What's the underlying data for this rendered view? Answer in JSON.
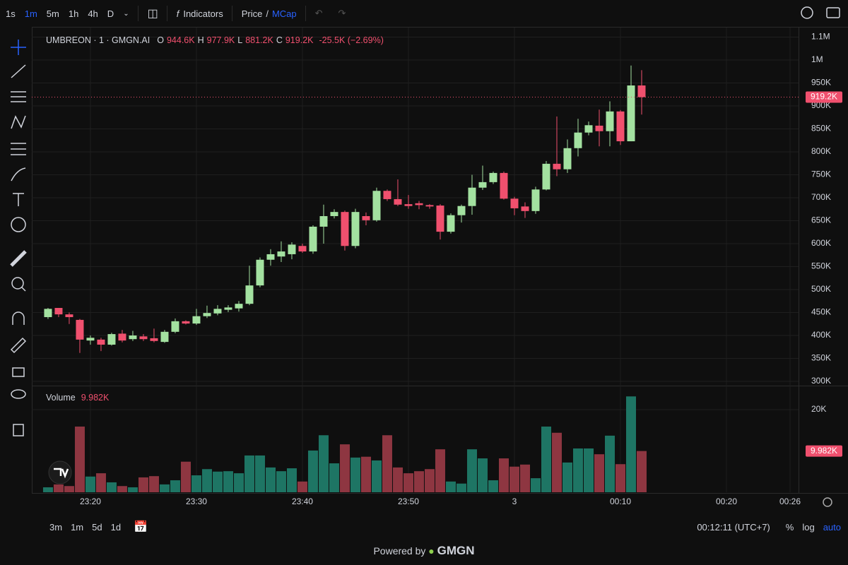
{
  "toolbar": {
    "intervals": [
      "1s",
      "1m",
      "5m",
      "1h",
      "4h",
      "D"
    ],
    "indicators": "Indicators",
    "price": "Price",
    "separator": "/",
    "mcap": "MCap"
  },
  "legend": {
    "symbol": "UMBREON · 1 · GMGN.AI",
    "o": "O",
    "open": "944.6K",
    "h": "H",
    "high": "977.9K",
    "l": "L",
    "low": "881.2K",
    "c": "C",
    "close": "919.2K",
    "change": "-25.5K (−2.69%)"
  },
  "volume_legend": {
    "title": "Volume",
    "value": "9.982K"
  },
  "chart_data": {
    "type": "candlestick",
    "xlim": [
      -1.53,
      70.8
    ],
    "xticks": [
      {
        "value": 4,
        "label": "23:20"
      },
      {
        "value": 14,
        "label": "23:30"
      },
      {
        "value": 24,
        "label": "23:40"
      },
      {
        "value": 34,
        "label": "23:50"
      },
      {
        "value": 44,
        "label": "3"
      },
      {
        "value": 54,
        "label": "00:10"
      },
      {
        "value": 64,
        "label": "00:20"
      },
      {
        "value": 70,
        "label": "00:26"
      }
    ],
    "open": [
      440000,
      460000,
      446000,
      434000,
      389000,
      391000,
      380000,
      404000,
      392000,
      398000,
      394000,
      386000,
      408000,
      431000,
      426000,
      442000,
      448000,
      456000,
      459000,
      469000,
      509000,
      565000,
      572000,
      577000,
      595000,
      583000,
      637000,
      660000,
      669000,
      595000,
      660000,
      651000,
      715000,
      697000,
      686000,
      688000,
      684000,
      683000,
      626000,
      662000,
      682000,
      722000,
      734000,
      754000,
      698000,
      681000,
      671000,
      718000,
      774000,
      762000,
      808000,
      842000,
      857000,
      845000,
      888000,
      823000,
      944600
    ],
    "high": [
      460000,
      460000,
      450000,
      436000,
      400000,
      395000,
      406000,
      412000,
      410000,
      403000,
      415000,
      412000,
      437000,
      433000,
      458000,
      465000,
      466000,
      466000,
      475000,
      552000,
      570000,
      588000,
      605000,
      603000,
      600000,
      640000,
      685000,
      675000,
      672000,
      676000,
      668000,
      722000,
      718000,
      740000,
      706000,
      693000,
      686000,
      686000,
      666000,
      685000,
      750000,
      770000,
      757000,
      757000,
      702000,
      690000,
      724000,
      780000,
      877000,
      827000,
      872000,
      866000,
      892000,
      910000,
      891000,
      988000,
      977900
    ],
    "low": [
      436000,
      440000,
      425000,
      362000,
      380000,
      366000,
      378000,
      385000,
      388000,
      388000,
      385000,
      384000,
      405000,
      424000,
      423000,
      438000,
      444000,
      451000,
      452000,
      466000,
      505000,
      552000,
      560000,
      566000,
      580000,
      578000,
      600000,
      655000,
      585000,
      590000,
      640000,
      648000,
      693000,
      682000,
      676000,
      675000,
      676000,
      609000,
      622000,
      646000,
      663000,
      717000,
      730000,
      696000,
      662000,
      656000,
      665000,
      716000,
      747000,
      754000,
      790000,
      836000,
      812000,
      812000,
      815000,
      823000,
      881200
    ],
    "close": [
      458000,
      446000,
      440000,
      391000,
      395000,
      380000,
      403000,
      389000,
      400000,
      392000,
      388000,
      408000,
      431000,
      426000,
      442000,
      449000,
      458000,
      461000,
      469000,
      509000,
      565000,
      577000,
      583000,
      598000,
      583000,
      637000,
      660000,
      669000,
      595000,
      669000,
      651000,
      715000,
      697000,
      685000,
      682000,
      684000,
      681000,
      626000,
      662000,
      682000,
      722000,
      734000,
      754000,
      698000,
      677000,
      671000,
      718000,
      774000,
      762000,
      808000,
      842000,
      858000,
      845000,
      888000,
      823000,
      944600,
      919200
    ],
    "up_color": "#a3e1a0",
    "down_color": "#f0506e",
    "ylim": [
      290800,
      1061500
    ],
    "yticks": [
      {
        "value": 300000,
        "label": "300K"
      },
      {
        "value": 350000,
        "label": "350K"
      },
      {
        "value": 400000,
        "label": "400K"
      },
      {
        "value": 450000,
        "label": "450K"
      },
      {
        "value": 500000,
        "label": "500K"
      },
      {
        "value": 550000,
        "label": "550K"
      },
      {
        "value": 600000,
        "label": "600K"
      },
      {
        "value": 650000,
        "label": "650K"
      },
      {
        "value": 700000,
        "label": "700K"
      },
      {
        "value": 750000,
        "label": "750K"
      },
      {
        "value": 800000,
        "label": "800K"
      },
      {
        "value": 850000,
        "label": "850K"
      },
      {
        "value": 900000,
        "label": "900K"
      },
      {
        "value": 950000,
        "label": "950K"
      },
      {
        "value": 1000000,
        "label": "1M"
      },
      {
        "value": 1050000,
        "label": "1.1M"
      }
    ],
    "grid": true,
    "price_line": {
      "value": 919200,
      "label": "919.2K"
    },
    "volume": {
      "values": [
        1200,
        1900,
        1500,
        15900,
        3800,
        4600,
        2400,
        1500,
        1200,
        3600,
        3900,
        1900,
        2900,
        7400,
        4100,
        5600,
        5000,
        5100,
        4600,
        8900,
        8900,
        6000,
        5100,
        5800,
        2600,
        10100,
        13800,
        7000,
        11600,
        8400,
        8600,
        7700,
        13800,
        6000,
        4600,
        5100,
        5600,
        10400,
        2600,
        2100,
        10400,
        8200,
        2900,
        8200,
        6200,
        6700,
        3400,
        15900,
        14400,
        7200,
        10600,
        10600,
        9200,
        13700,
        6800,
        23200,
        9982
      ],
      "ylim": [
        0,
        25470
      ],
      "yticks": [
        {
          "value": 20000,
          "label": "20K"
        }
      ],
      "last": {
        "value": 9982,
        "label": "9.982K"
      },
      "up_color": "#1e7564",
      "down_color": "#8e3641"
    }
  },
  "bottom_bar": {
    "ranges": [
      "3m",
      "1m",
      "5d",
      "1d"
    ],
    "clock": "00:12:11 (UTC+7)",
    "percent": "%",
    "log": "log",
    "auto": "auto"
  },
  "footer": {
    "powered": "Powered by",
    "brand": "GMGN"
  }
}
